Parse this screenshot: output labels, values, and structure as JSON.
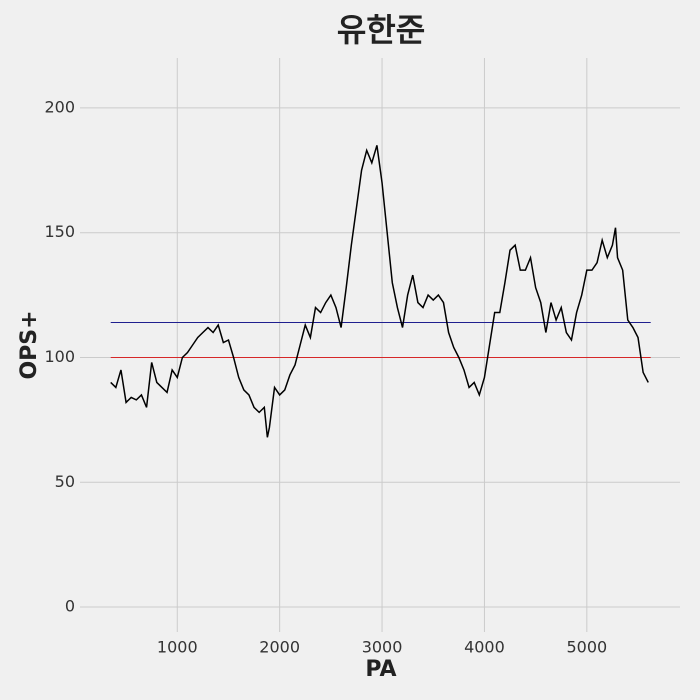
{
  "chart_data": {
    "type": "line",
    "title": "유한준",
    "x_label": "PA",
    "y_label": "OPS+",
    "xlim": [
      50,
      5910
    ],
    "ylim": [
      -10,
      220
    ],
    "xticks": [
      1000,
      2000,
      3000,
      4000,
      5000
    ],
    "yticks": [
      0,
      50,
      100,
      150,
      200
    ],
    "grid": true,
    "series": [
      {
        "name": "OPS+",
        "color": "#000000",
        "x": [
          350,
          400,
          450,
          500,
          550,
          600,
          650,
          700,
          750,
          800,
          850,
          900,
          950,
          1000,
          1050,
          1100,
          1150,
          1200,
          1250,
          1300,
          1350,
          1400,
          1450,
          1500,
          1550,
          1600,
          1650,
          1700,
          1750,
          1800,
          1850,
          1880,
          1900,
          1950,
          2000,
          2050,
          2100,
          2150,
          2200,
          2250,
          2300,
          2350,
          2400,
          2450,
          2500,
          2550,
          2600,
          2650,
          2700,
          2750,
          2800,
          2850,
          2900,
          2950,
          3000,
          3050,
          3100,
          3150,
          3200,
          3250,
          3300,
          3350,
          3400,
          3450,
          3500,
          3550,
          3600,
          3650,
          3700,
          3750,
          3800,
          3850,
          3900,
          3950,
          4000,
          4050,
          4100,
          4150,
          4200,
          4250,
          4300,
          4350,
          4400,
          4450,
          4500,
          4550,
          4600,
          4650,
          4700,
          4750,
          4800,
          4850,
          4900,
          4950,
          5000,
          5050,
          5100,
          5150,
          5200,
          5250,
          5280,
          5300,
          5350,
          5400,
          5450,
          5500,
          5550,
          5600
        ],
        "values": [
          90,
          88,
          95,
          82,
          84,
          83,
          85,
          80,
          98,
          90,
          88,
          86,
          95,
          92,
          100,
          102,
          105,
          108,
          110,
          112,
          110,
          113,
          106,
          107,
          100,
          92,
          87,
          85,
          80,
          78,
          80,
          68,
          72,
          88,
          85,
          87,
          93,
          97,
          105,
          113,
          108,
          120,
          118,
          122,
          125,
          120,
          112,
          128,
          145,
          160,
          175,
          183,
          178,
          185,
          170,
          150,
          130,
          120,
          112,
          125,
          133,
          122,
          120,
          125,
          123,
          125,
          122,
          110,
          104,
          100,
          95,
          88,
          90,
          85,
          92,
          105,
          118,
          118,
          130,
          143,
          145,
          135,
          135,
          140,
          128,
          122,
          110,
          122,
          115,
          120,
          110,
          107,
          118,
          125,
          135,
          135,
          138,
          147,
          140,
          145,
          152,
          140,
          135,
          115,
          112,
          108,
          94,
          90
        ]
      }
    ],
    "hlines": [
      {
        "y": 100,
        "xmin": 350,
        "xmax": 5624,
        "color": "#d62728"
      },
      {
        "y": 114,
        "xmin": 350,
        "xmax": 5624,
        "color": "#1f1f8f"
      }
    ]
  }
}
